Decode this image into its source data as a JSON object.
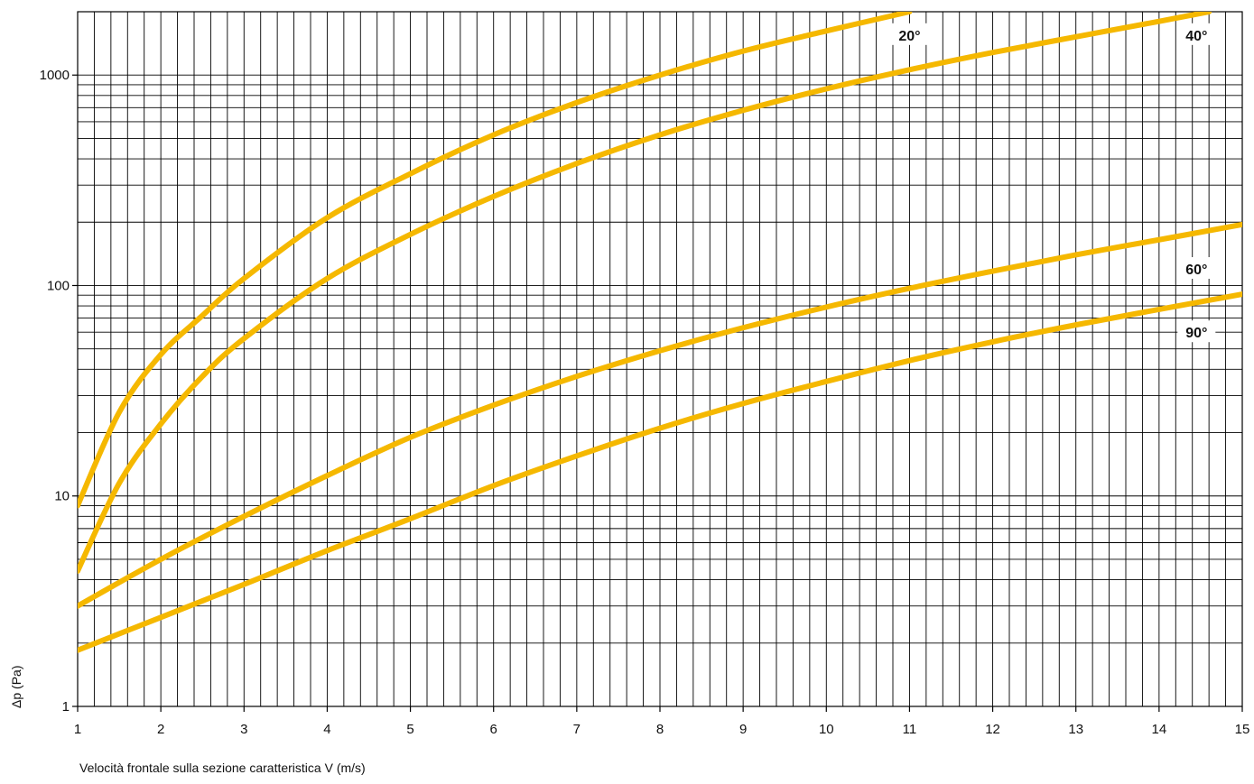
{
  "chart_data": {
    "type": "line",
    "title": "",
    "xlabel": "Velocità frontale sulla sezione caratteristica  V (m/s)",
    "ylabel": "Δp (Pa)",
    "xlim": [
      1,
      15
    ],
    "ylim": [
      1,
      2000
    ],
    "yscale": "log",
    "grid": true,
    "line_color": "#F5B800",
    "x_ticks": [
      "1",
      "2",
      "3",
      "4",
      "5",
      "6",
      "7",
      "8",
      "9",
      "10",
      "11",
      "12",
      "13",
      "14",
      "15"
    ],
    "y_ticks": [
      {
        "value": 1,
        "label": "1"
      },
      {
        "value": 10,
        "label": "10"
      },
      {
        "value": 100,
        "label": "100"
      },
      {
        "value": 1000,
        "label": "1000"
      }
    ],
    "series": [
      {
        "name": "20°",
        "x": [
          1,
          1.5,
          2,
          2.5,
          3,
          4,
          5,
          6,
          7,
          8,
          9,
          10,
          11
        ],
        "values": [
          9,
          25,
          47,
          72,
          108,
          210,
          340,
          520,
          740,
          1000,
          1300,
          1620,
          2000
        ]
      },
      {
        "name": "40°",
        "x": [
          1,
          1.5,
          2,
          2.5,
          3,
          4,
          5,
          6,
          7,
          8,
          9,
          10,
          11,
          12,
          13,
          14,
          14.6
        ],
        "values": [
          4.4,
          11.5,
          22,
          37,
          56,
          108,
          175,
          265,
          380,
          520,
          680,
          860,
          1060,
          1280,
          1520,
          1800,
          2000
        ]
      },
      {
        "name": "60°",
        "x": [
          1,
          2,
          3,
          4,
          5,
          6,
          7,
          8,
          9,
          10,
          11,
          12,
          13,
          14,
          15
        ],
        "values": [
          3,
          5,
          8,
          12.5,
          19,
          27,
          37,
          49,
          63,
          79,
          97,
          117,
          140,
          165,
          195
        ]
      },
      {
        "name": "90°",
        "x": [
          1,
          2,
          3,
          4,
          5,
          6,
          7,
          8,
          9,
          10,
          11,
          12,
          13,
          14,
          15
        ],
        "values": [
          1.85,
          2.65,
          3.8,
          5.5,
          7.8,
          11.2,
          15.5,
          21,
          27.5,
          35,
          44,
          54,
          65,
          77,
          91
        ]
      }
    ]
  }
}
